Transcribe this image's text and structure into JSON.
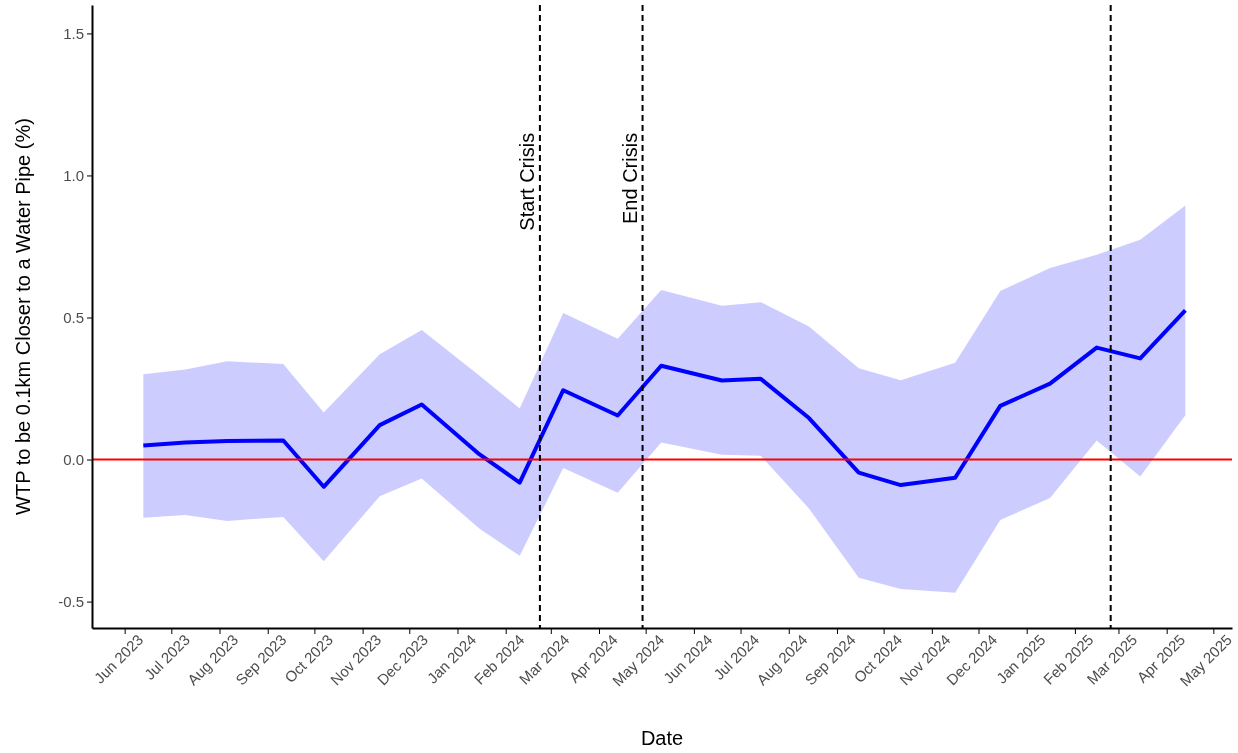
{
  "chart_data": {
    "type": "line",
    "xlabel": "Date",
    "ylabel": "WTP to be 0.1km Closer to a Water Pipe (%)",
    "x": [
      "2023-06-13",
      "2023-07-10",
      "2023-08-06",
      "2023-09-11",
      "2023-10-07",
      "2023-11-12",
      "2023-12-09",
      "2024-01-15",
      "2024-02-10",
      "2024-03-09",
      "2024-04-13",
      "2024-05-11",
      "2024-06-19",
      "2024-07-14",
      "2024-08-14",
      "2024-09-15",
      "2024-10-12",
      "2024-11-16",
      "2024-12-15",
      "2025-01-16",
      "2025-02-15",
      "2025-03-15",
      "2025-04-13"
    ],
    "series": [
      {
        "color": "#0000ff",
        "values": [
          0.049,
          0.06,
          0.065,
          0.067,
          -0.096,
          0.121,
          0.194,
          0.019,
          -0.081,
          0.244,
          0.155,
          0.33,
          0.278,
          0.284,
          0.146,
          -0.046,
          -0.09,
          -0.064,
          0.189,
          0.267,
          0.394,
          0.356,
          0.525
        ],
        "upper": [
          0.3,
          0.317,
          0.346,
          0.336,
          0.166,
          0.371,
          0.456,
          0.296,
          0.18,
          0.516,
          0.425,
          0.597,
          0.541,
          0.554,
          0.468,
          0.321,
          0.279,
          0.341,
          0.593,
          0.674,
          0.721,
          0.774,
          0.894
        ],
        "lower": [
          -0.205,
          -0.195,
          -0.216,
          -0.202,
          -0.358,
          -0.129,
          -0.067,
          -0.243,
          -0.339,
          -0.03,
          -0.117,
          0.06,
          0.017,
          0.013,
          -0.172,
          -0.416,
          -0.456,
          -0.469,
          -0.213,
          -0.135,
          0.067,
          -0.06,
          0.156
        ]
      }
    ],
    "xlim": [
      "2023-05-11",
      "2025-05-13"
    ],
    "xticks": [
      {
        "value": "2023-06-01",
        "label": "Jun 2023"
      },
      {
        "value": "2023-07-01",
        "label": "Jul 2023"
      },
      {
        "value": "2023-08-01",
        "label": "Aug 2023"
      },
      {
        "value": "2023-09-01",
        "label": "Sep 2023"
      },
      {
        "value": "2023-10-01",
        "label": "Oct 2023"
      },
      {
        "value": "2023-11-01",
        "label": "Nov 2023"
      },
      {
        "value": "2023-12-01",
        "label": "Dec 2023"
      },
      {
        "value": "2024-01-01",
        "label": "Jan 2024"
      },
      {
        "value": "2024-02-01",
        "label": "Feb 2024"
      },
      {
        "value": "2024-03-01",
        "label": "Mar 2024"
      },
      {
        "value": "2024-04-01",
        "label": "Apr 2024"
      },
      {
        "value": "2024-05-01",
        "label": "May 2024"
      },
      {
        "value": "2024-06-01",
        "label": "Jun 2024"
      },
      {
        "value": "2024-07-01",
        "label": "Jul 2024"
      },
      {
        "value": "2024-08-01",
        "label": "Aug 2024"
      },
      {
        "value": "2024-09-01",
        "label": "Sep 2024"
      },
      {
        "value": "2024-10-01",
        "label": "Oct 2024"
      },
      {
        "value": "2024-11-01",
        "label": "Nov 2024"
      },
      {
        "value": "2024-12-01",
        "label": "Dec 2024"
      },
      {
        "value": "2025-01-01",
        "label": "Jan 2025"
      },
      {
        "value": "2025-02-01",
        "label": "Feb 2025"
      },
      {
        "value": "2025-03-01",
        "label": "Mar 2025"
      },
      {
        "value": "2025-04-01",
        "label": "Apr 2025"
      },
      {
        "value": "2025-05-01",
        "label": "May 2025"
      }
    ],
    "ylim": [
      -0.593,
      1.6
    ],
    "yticks": [
      {
        "value": -0.5,
        "label": "-0.5"
      },
      {
        "value": 0,
        "label": "0.0"
      },
      {
        "value": 0.5,
        "label": "0.5"
      },
      {
        "value": 1,
        "label": "1.0"
      },
      {
        "value": 1.5,
        "label": "1.5"
      }
    ],
    "ref_lines": [
      {
        "axis": "y",
        "value": 0,
        "color": "#ff0000",
        "line_style": "solid"
      },
      {
        "axis": "x",
        "value": "2024-02-23",
        "label": "Start Crisis",
        "color": "#000000",
        "line_style": "dashed"
      },
      {
        "axis": "x",
        "value": "2024-04-29",
        "label": "End Crisis",
        "color": "#000000",
        "line_style": "dashed"
      },
      {
        "axis": "x",
        "value": "2025-02-24",
        "color": "#000000",
        "line_style": "dashed"
      }
    ],
    "grid": false,
    "line_style": "solid",
    "marker": "none"
  }
}
